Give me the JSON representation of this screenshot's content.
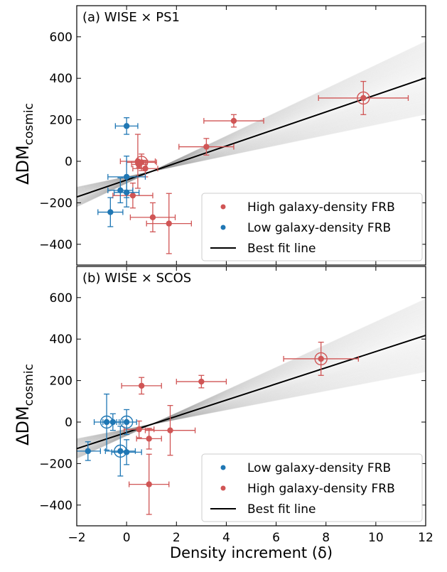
{
  "colors": {
    "high": "#d05555",
    "low": "#1f77b4",
    "fit": "#000000",
    "shade": "#9a9a9a"
  },
  "chart_data": [
    {
      "type": "scatter",
      "panel_label": "(a) WISE × PS1",
      "ylabel": "ΔDM",
      "ylabel_sub": "cosmic",
      "xlim": [
        -2,
        12
      ],
      "ylim": [
        -500,
        750
      ],
      "yticks": [
        -400,
        -200,
        0,
        200,
        400,
        600
      ],
      "ytick_labels": [
        "−400",
        "−200",
        "0",
        "200",
        "400",
        "600"
      ],
      "fit": {
        "slope": 41,
        "intercept": -90
      },
      "legend": [
        {
          "label": "High galaxy-density FRB",
          "kind": "dot",
          "color": "high"
        },
        {
          "label": "Low galaxy-density FRB",
          "kind": "dot",
          "color": "low"
        },
        {
          "label": "Best fit line",
          "kind": "line",
          "color": "fit"
        }
      ],
      "series": [
        {
          "name": "High galaxy-density FRB",
          "color": "high",
          "points": [
            {
              "x": 9.5,
              "y": 305,
              "xerr": 1.8,
              "yerr": 80,
              "circled": true
            },
            {
              "x": 4.3,
              "y": 195,
              "xerr": 1.2,
              "yerr": 30
            },
            {
              "x": 3.2,
              "y": 70,
              "xerr": 1.1,
              "yerr": 40
            },
            {
              "x": 0.6,
              "y": -5,
              "xerr": 0.6,
              "yerr": 40,
              "circled": true
            },
            {
              "x": 0.45,
              "y": 0,
              "xerr": 0.7,
              "yerr": 130
            },
            {
              "x": 0.75,
              "y": -35,
              "xerr": 0.5,
              "yerr": 40
            },
            {
              "x": 0.25,
              "y": -165,
              "xerr": 0.8,
              "yerr": 60
            },
            {
              "x": 1.05,
              "y": -270,
              "xerr": 0.9,
              "yerr": 70
            },
            {
              "x": 1.7,
              "y": -300,
              "xerr": 0.9,
              "yerr": 145
            },
            {
              "x": 0.5,
              "y": -15,
              "xerr": 0.3,
              "yerr": 15
            }
          ]
        },
        {
          "name": "Low galaxy-density FRB",
          "color": "low",
          "points": [
            {
              "x": 0.0,
              "y": 170,
              "xerr": 0.45,
              "yerr": 40
            },
            {
              "x": 0.0,
              "y": -75,
              "xerr": 0.75,
              "yerr": 100
            },
            {
              "x": -0.25,
              "y": -140,
              "xerr": 0.5,
              "yerr": 60
            },
            {
              "x": 0.0,
              "y": -150,
              "xerr": 0.5,
              "yerr": 70
            },
            {
              "x": -0.65,
              "y": -245,
              "xerr": 0.5,
              "yerr": 70
            }
          ]
        }
      ]
    },
    {
      "type": "scatter",
      "panel_label": "(b) WISE × SCOS",
      "ylabel": "ΔDM",
      "ylabel_sub": "cosmic",
      "xlabel": "Density increment (δ)",
      "xlim": [
        -2,
        12
      ],
      "ylim": [
        -500,
        750
      ],
      "xticks": [
        -2,
        0,
        2,
        4,
        6,
        8,
        10,
        12
      ],
      "xtick_labels": [
        "−2",
        "0",
        "2",
        "4",
        "6",
        "8",
        "10",
        "12"
      ],
      "yticks": [
        -400,
        -200,
        0,
        200,
        400,
        600
      ],
      "ytick_labels": [
        "−400",
        "−200",
        "0",
        "200",
        "400",
        "600"
      ],
      "fit": {
        "slope": 39,
        "intercept": -50
      },
      "legend": [
        {
          "label": "Low galaxy-density FRB",
          "kind": "dot",
          "color": "low"
        },
        {
          "label": "High galaxy-density FRB",
          "kind": "dot",
          "color": "high"
        },
        {
          "label": "Best fit line",
          "kind": "line",
          "color": "fit"
        }
      ],
      "series": [
        {
          "name": "High galaxy-density FRB",
          "color": "high",
          "points": [
            {
              "x": 7.8,
              "y": 305,
              "xerr": 1.5,
              "yerr": 80,
              "circled": true
            },
            {
              "x": 3.0,
              "y": 195,
              "xerr": 1.0,
              "yerr": 30
            },
            {
              "x": 0.6,
              "y": 175,
              "xerr": 0.8,
              "yerr": 40
            },
            {
              "x": 0.5,
              "y": -35,
              "xerr": 0.6,
              "yerr": 40
            },
            {
              "x": 1.75,
              "y": -40,
              "xerr": 1.0,
              "yerr": 120
            },
            {
              "x": 0.9,
              "y": -80,
              "xerr": 0.5,
              "yerr": 50
            },
            {
              "x": 0.9,
              "y": -300,
              "xerr": 0.8,
              "yerr": 145
            }
          ]
        },
        {
          "name": "Low galaxy-density FRB",
          "color": "low",
          "points": [
            {
              "x": -0.8,
              "y": 0,
              "xerr": 0.5,
              "yerr": 135,
              "circled": true
            },
            {
              "x": -0.55,
              "y": 0,
              "xerr": 0.4,
              "yerr": 40
            },
            {
              "x": 0.0,
              "y": 0,
              "xerr": 0.4,
              "yerr": 60,
              "circled": true
            },
            {
              "x": -1.55,
              "y": -140,
              "xerr": 0.5,
              "yerr": 45
            },
            {
              "x": -0.25,
              "y": -140,
              "xerr": 0.6,
              "yerr": 120,
              "circled": true
            },
            {
              "x": 0.0,
              "y": -145,
              "xerr": 0.6,
              "yerr": 60
            }
          ]
        }
      ]
    }
  ]
}
